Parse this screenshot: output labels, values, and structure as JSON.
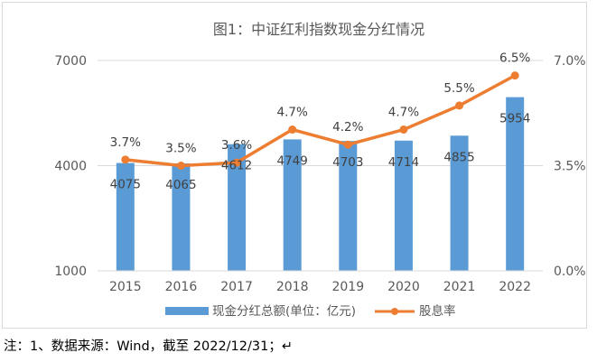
{
  "footnote": "注：1、数据来源：Wind，截至 2022/12/31；↵",
  "return_mark": "↵",
  "colors": {
    "bar": "#5b9bd5",
    "line": "#ed7d31",
    "grid": "#d9d9d9",
    "text": "#595959"
  },
  "chart_data": {
    "type": "bar+line",
    "title": "图1：中证红利指数现金分红情况",
    "categories": [
      "2015",
      "2016",
      "2017",
      "2018",
      "2019",
      "2020",
      "2021",
      "2022"
    ],
    "series": [
      {
        "name": "现金分红总额(单位：亿元)",
        "type": "bar",
        "axis": "left",
        "values": [
          4075,
          4065,
          4612,
          4749,
          4703,
          4714,
          4855,
          5954
        ],
        "labels": [
          "4075",
          "4065",
          "4612",
          "4749",
          "4703",
          "4714",
          "4855",
          "5954"
        ]
      },
      {
        "name": "股息率",
        "type": "line",
        "axis": "right",
        "values": [
          3.7,
          3.5,
          3.6,
          4.7,
          4.2,
          4.7,
          5.5,
          6.5
        ],
        "labels": [
          "3.7%",
          "3.5%",
          "3.6%",
          "4.7%",
          "4.2%",
          "4.7%",
          "5.5%",
          "6.5%"
        ]
      }
    ],
    "y_left": {
      "ylim": [
        1000,
        7000
      ],
      "ticks": [
        "1000",
        "4000",
        "7000"
      ],
      "tick_values": [
        1000,
        4000,
        7000
      ]
    },
    "y_right": {
      "ylim": [
        0,
        7
      ],
      "ticks": [
        "0.0%",
        "3.5%",
        "7.0%"
      ],
      "tick_values": [
        0,
        3.5,
        7
      ]
    },
    "grid": true,
    "legend": "bottom"
  }
}
